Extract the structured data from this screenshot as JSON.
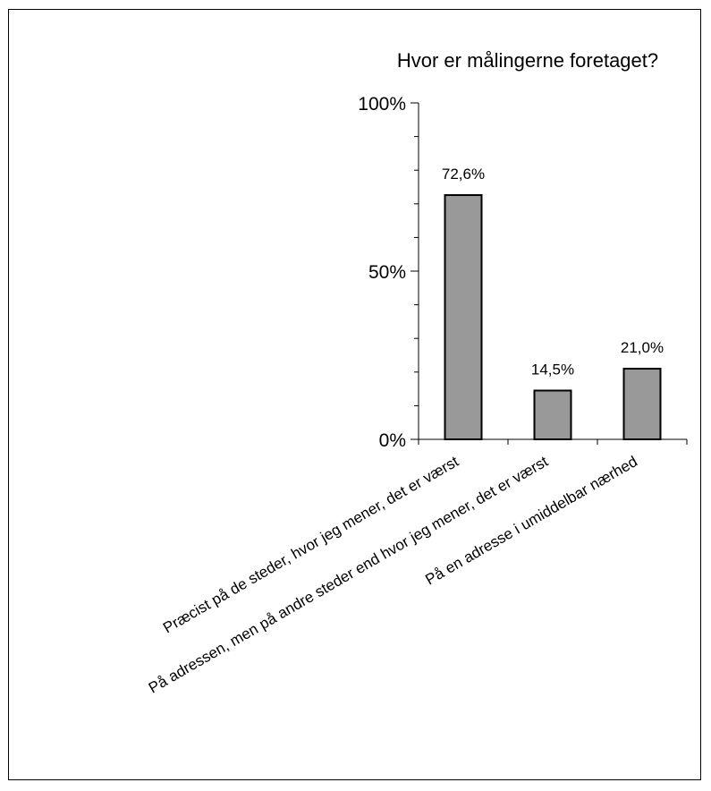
{
  "chart_data": {
    "type": "bar",
    "title": "Hvor er målingerne foretaget?",
    "categories": [
      "Præcist på de steder, hvor jeg mener, det er værst",
      "På adressen, men på andre steder end hvor jeg mener, det er værst",
      "På en adresse i umiddelbar nærhed"
    ],
    "values": [
      72.6,
      14.5,
      21.0
    ],
    "data_labels": [
      "72,6%",
      "14,5%",
      "21,0%"
    ],
    "ylim": [
      0,
      100
    ],
    "yticks": [
      0,
      50,
      100
    ],
    "ytick_labels": [
      "0%",
      "50%",
      "100%"
    ],
    "bar_color": "#999999",
    "grid": false,
    "legend": "none"
  }
}
